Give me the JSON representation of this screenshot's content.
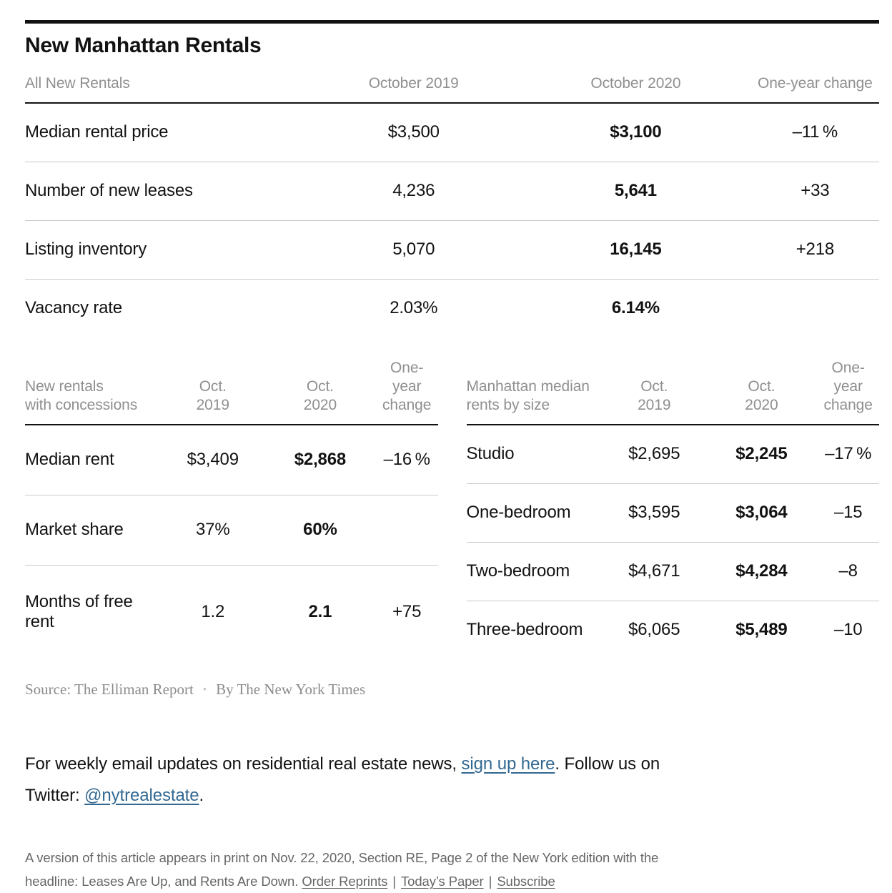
{
  "graphic": {
    "title": "New Manhattan Rentals",
    "source": "Source: The Elliman Report",
    "bullet": "•",
    "byline": "By The New York Times"
  },
  "chart_data": [
    {
      "type": "table",
      "title": "All New Rentals",
      "columns": [
        "All New Rentals",
        "October 2019",
        "October 2020",
        "One-year change"
      ],
      "rows": [
        [
          "Median rental price",
          "$3,500",
          "$3,100",
          "–11 %"
        ],
        [
          "Number of new leases",
          "4,236",
          "5,641",
          "+33"
        ],
        [
          "Listing inventory",
          "5,070",
          "16,145",
          "+218"
        ],
        [
          "Vacancy rate",
          "2.03%",
          "6.14%",
          ""
        ]
      ],
      "highlight_column": "October 2020",
      "highlight_color": "#b22b20",
      "layout": "header left-aligned label column, centered value columns, thick rule under header, thin rules between rows"
    },
    {
      "type": "table",
      "title": "New rentals with concessions",
      "columns": [
        "New rentals\nwith concessions",
        "Oct.\n2019",
        "Oct.\n2020",
        "One-year\nchange"
      ],
      "rows": [
        [
          "Median rent",
          "$3,409",
          "$2,868",
          "–16 %"
        ],
        [
          "Market share",
          "37%",
          "60%",
          ""
        ],
        [
          "Months of free rent",
          "1.2",
          "2.1",
          "+75"
        ]
      ],
      "highlight_column": "Oct. 2020",
      "highlight_color": "#b22b20"
    },
    {
      "type": "table",
      "title": "Manhattan median rents by size",
      "columns": [
        "Manhattan median\nrents by size",
        "Oct.\n2019",
        "Oct.\n2020",
        "One-year\nchange"
      ],
      "rows": [
        [
          "Studio",
          "$2,695",
          "$2,245",
          "–17 %"
        ],
        [
          "One-bedroom",
          "$3,595",
          "$3,064",
          "–15"
        ],
        [
          "Two-bedroom",
          "$4,671",
          "$4,284",
          "–8"
        ],
        [
          "Three-bedroom",
          "$6,065",
          "$5,489",
          "–10"
        ]
      ],
      "highlight_column": "Oct. 2020",
      "highlight_color": "#b22b20"
    }
  ],
  "newsletter": {
    "line1_text": "For weekly email updates on residential real estate news, ",
    "line1_link": "sign up here",
    "line1_end": ". Follow us on",
    "line2_text": "Twitter: ",
    "line2_link": "@nytrealestate",
    "line2_end": "."
  },
  "print_note": {
    "line1": "A version of this article appears in print on Nov. 22, 2020, Section RE, Page 2 of the New York edition with the",
    "line2": "headline: Leases Are Up, and Rents Are Down.",
    "links": {
      "order_reprints": "Order Reprints",
      "todays_paper": "Today’s Paper",
      "subscribe": "Subscribe"
    },
    "separator": "|"
  },
  "colors": {
    "accent_red": "#b22b20",
    "link_blue": "#326891"
  }
}
